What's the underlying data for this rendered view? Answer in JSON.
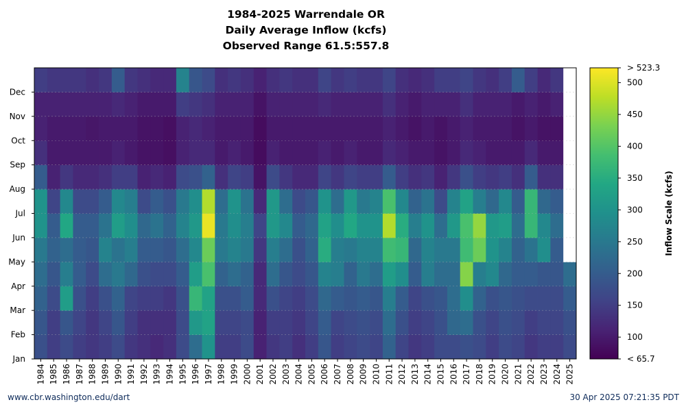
{
  "title": {
    "line1": "1984-2025 Warrendale OR",
    "line2": "Daily Average Inflow (kcfs)",
    "line3": "Observed Range 61.5:557.8"
  },
  "footer": {
    "source": "www.cbr.washington.edu/dart",
    "timestamp": "30 Apr 2025 07:21:35 PDT"
  },
  "chart_data": {
    "type": "heatmap",
    "x_categories": [
      "1984",
      "1985",
      "1986",
      "1987",
      "1988",
      "1989",
      "1990",
      "1991",
      "1992",
      "1993",
      "1994",
      "1995",
      "1996",
      "1997",
      "1998",
      "1999",
      "2000",
      "2001",
      "2002",
      "2003",
      "2004",
      "2005",
      "2006",
      "2007",
      "2008",
      "2009",
      "2010",
      "2011",
      "2012",
      "2013",
      "2014",
      "2015",
      "2016",
      "2017",
      "2018",
      "2019",
      "2020",
      "2021",
      "2022",
      "2023",
      "2024",
      "2025"
    ],
    "y_categories": [
      "Jan",
      "Feb",
      "Mar",
      "Apr",
      "May",
      "Jun",
      "Jul",
      "Aug",
      "Sep",
      "Oct",
      "Nov",
      "Dec"
    ],
    "colorbar": {
      "label": "Inflow Scale (kcfs)",
      "min": 65.7,
      "max": 523.3,
      "min_label": "< 65.7",
      "max_label": "> 523.3",
      "ticks": [
        100,
        150,
        200,
        250,
        300,
        350,
        400,
        450,
        500
      ],
      "colormap": "viridis"
    },
    "values_monthly_kcfs": [
      [
        180,
        190,
        210,
        230,
        250,
        300,
        300,
        200,
        130,
        110,
        110,
        150
      ],
      [
        150,
        150,
        170,
        190,
        210,
        200,
        160,
        110,
        100,
        100,
        110,
        140
      ],
      [
        170,
        190,
        320,
        260,
        230,
        340,
        280,
        140,
        100,
        100,
        110,
        140
      ],
      [
        150,
        160,
        180,
        200,
        200,
        200,
        170,
        120,
        100,
        100,
        110,
        140
      ],
      [
        140,
        140,
        150,
        170,
        190,
        200,
        170,
        120,
        100,
        95,
        110,
        130
      ],
      [
        150,
        160,
        180,
        230,
        270,
        240,
        200,
        130,
        100,
        100,
        110,
        140
      ],
      [
        170,
        190,
        210,
        250,
        240,
        320,
        280,
        150,
        110,
        100,
        120,
        200
      ],
      [
        140,
        150,
        160,
        220,
        260,
        290,
        260,
        150,
        100,
        100,
        110,
        140
      ],
      [
        130,
        130,
        150,
        180,
        200,
        220,
        170,
        110,
        90,
        90,
        100,
        130
      ],
      [
        120,
        130,
        150,
        170,
        200,
        240,
        200,
        120,
        90,
        90,
        100,
        120
      ],
      [
        130,
        130,
        140,
        170,
        190,
        210,
        180,
        110,
        85,
        85,
        100,
        120
      ],
      [
        170,
        170,
        180,
        200,
        230,
        270,
        250,
        170,
        110,
        110,
        150,
        270
      ],
      [
        230,
        310,
        370,
        320,
        280,
        310,
        290,
        180,
        120,
        120,
        140,
        190
      ],
      [
        300,
        330,
        330,
        390,
        420,
        510,
        470,
        210,
        120,
        110,
        130,
        170
      ],
      [
        150,
        160,
        180,
        210,
        250,
        250,
        230,
        130,
        100,
        100,
        110,
        130
      ],
      [
        150,
        160,
        180,
        230,
        270,
        290,
        300,
        160,
        110,
        100,
        110,
        140
      ],
      [
        170,
        170,
        200,
        210,
        250,
        260,
        240,
        150,
        100,
        100,
        110,
        130
      ],
      [
        110,
        110,
        120,
        120,
        140,
        160,
        120,
        90,
        80,
        80,
        90,
        110
      ],
      [
        140,
        150,
        180,
        230,
        260,
        310,
        310,
        170,
        110,
        100,
        110,
        130
      ],
      [
        150,
        150,
        160,
        190,
        230,
        280,
        230,
        140,
        100,
        100,
        110,
        140
      ],
      [
        130,
        140,
        150,
        170,
        180,
        200,
        170,
        120,
        100,
        100,
        110,
        130
      ],
      [
        150,
        160,
        170,
        190,
        210,
        220,
        190,
        120,
        100,
        100,
        110,
        130
      ],
      [
        190,
        200,
        220,
        270,
        350,
        330,
        300,
        160,
        110,
        100,
        120,
        160
      ],
      [
        150,
        160,
        200,
        260,
        260,
        290,
        230,
        140,
        100,
        100,
        110,
        140
      ],
      [
        160,
        170,
        190,
        210,
        250,
        340,
        310,
        160,
        110,
        100,
        110,
        150
      ],
      [
        170,
        180,
        200,
        250,
        270,
        300,
        250,
        150,
        100,
        100,
        110,
        140
      ],
      [
        160,
        170,
        190,
        230,
        270,
        300,
        270,
        150,
        100,
        100,
        110,
        140
      ],
      [
        210,
        230,
        260,
        320,
        380,
        470,
        390,
        200,
        120,
        110,
        130,
        160
      ],
      [
        160,
        180,
        200,
        290,
        370,
        350,
        280,
        150,
        110,
        100,
        110,
        130
      ],
      [
        140,
        150,
        160,
        200,
        220,
        260,
        210,
        130,
        100,
        90,
        100,
        120
      ],
      [
        150,
        160,
        180,
        260,
        270,
        300,
        240,
        140,
        100,
        100,
        110,
        130
      ],
      [
        170,
        180,
        190,
        230,
        250,
        230,
        170,
        110,
        90,
        90,
        110,
        150
      ],
      [
        170,
        220,
        230,
        230,
        250,
        310,
        270,
        140,
        100,
        100,
        110,
        150
      ],
      [
        180,
        230,
        290,
        440,
        380,
        390,
        330,
        180,
        120,
        110,
        130,
        160
      ],
      [
        170,
        180,
        210,
        260,
        420,
        450,
        260,
        150,
        110,
        100,
        110,
        140
      ],
      [
        150,
        160,
        180,
        280,
        300,
        310,
        220,
        140,
        100,
        100,
        110,
        130
      ],
      [
        170,
        180,
        190,
        220,
        270,
        320,
        280,
        150,
        100,
        100,
        110,
        150
      ],
      [
        160,
        170,
        180,
        200,
        210,
        230,
        200,
        130,
        100,
        90,
        100,
        200
      ],
      [
        140,
        150,
        170,
        200,
        240,
        370,
        370,
        200,
        120,
        100,
        110,
        150
      ],
      [
        150,
        160,
        170,
        190,
        290,
        280,
        220,
        130,
        100,
        90,
        100,
        120
      ],
      [
        150,
        160,
        170,
        190,
        200,
        230,
        200,
        130,
        100,
        90,
        110,
        140
      ],
      [
        170,
        180,
        200,
        230,
        null,
        null,
        null,
        null,
        null,
        null,
        null,
        null
      ]
    ]
  }
}
